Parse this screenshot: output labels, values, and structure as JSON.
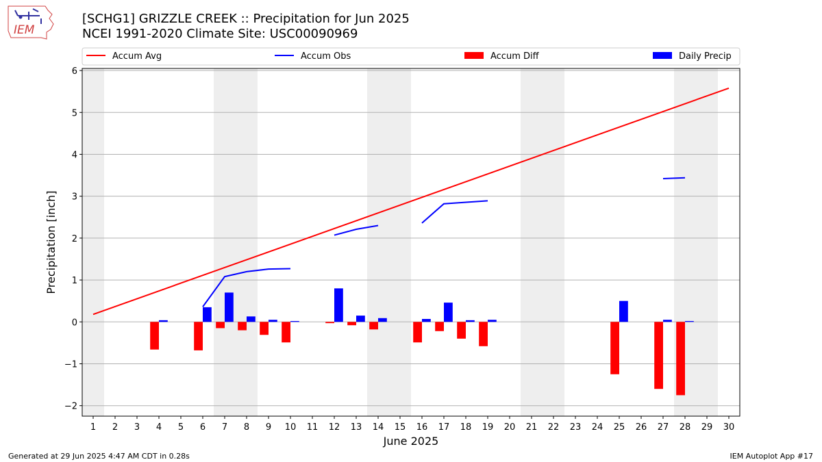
{
  "header": {
    "title_line1": "[SCHG1] GRIZZLE CREEK :: Precipitation for Jun 2025",
    "title_line2": "NCEI 1991-2020 Climate Site: USC00090969",
    "logo_text": "IEM"
  },
  "footer": {
    "generated": "Generated at 29 Jun 2025 4:47 AM CDT in 0.28s",
    "app": "IEM Autoplot App #17"
  },
  "colors": {
    "accum_avg": "#ff0000",
    "accum_obs": "#0000ff",
    "accum_diff": "#ff0000",
    "daily_precip": "#0000ff",
    "weekend_shade": "#eeeeee",
    "grid": "#b0b0b0"
  },
  "chart_data": {
    "type": "bar",
    "xlabel": "June 2025",
    "ylabel": "Precipitation [inch]",
    "xlim": [
      0.5,
      30.5
    ],
    "ylim": [
      -2.25,
      6.05
    ],
    "yticks": [
      -2,
      -1,
      0,
      1,
      2,
      3,
      4,
      5,
      6
    ],
    "ytick_labels": [
      "−2",
      "−1",
      "0",
      "1",
      "2",
      "3",
      "4",
      "5",
      "6"
    ],
    "days": [
      1,
      2,
      3,
      4,
      5,
      6,
      7,
      8,
      9,
      10,
      11,
      12,
      13,
      14,
      15,
      16,
      17,
      18,
      19,
      20,
      21,
      22,
      23,
      24,
      25,
      26,
      27,
      28,
      29,
      30
    ],
    "day_labels": [
      "1",
      "2",
      "3",
      "4",
      "5",
      "6",
      "7",
      "8",
      "9",
      "10",
      "11",
      "12",
      "13",
      "14",
      "15",
      "16",
      "17",
      "18",
      "19",
      "20",
      "21",
      "22",
      "23",
      "24",
      "25",
      "26",
      "27",
      "28",
      "29",
      "30"
    ],
    "weekend_days": [
      1,
      7,
      8,
      14,
      15,
      21,
      22,
      28,
      29
    ],
    "grid": true,
    "legend_position": "top",
    "legend": [
      "Accum Avg",
      "Accum Obs",
      "Accum Diff",
      "Daily Precip"
    ],
    "series": [
      {
        "name": "Accum Avg",
        "kind": "line",
        "x": [
          1,
          30
        ],
        "y": [
          0.18,
          5.58
        ]
      },
      {
        "name": "Accum Obs",
        "kind": "line",
        "segments": [
          {
            "x": [
              6,
              7,
              8,
              9,
              10
            ],
            "y": [
              0.36,
              1.08,
              1.2,
              1.26,
              1.27
            ]
          },
          {
            "x": [
              12,
              13,
              14
            ],
            "y": [
              2.07,
              2.21,
              2.3
            ]
          },
          {
            "x": [
              16,
              17,
              19
            ],
            "y": [
              2.36,
              2.82,
              2.89
            ]
          },
          {
            "x": [
              27,
              28
            ],
            "y": [
              3.42,
              3.44
            ]
          }
        ]
      },
      {
        "name": "Accum Diff",
        "kind": "bar",
        "x": [
          4,
          6,
          7,
          8,
          9,
          10,
          12,
          13,
          14,
          16,
          17,
          18,
          19,
          25,
          27,
          28
        ],
        "y": [
          -0.66,
          -0.68,
          -0.15,
          -0.2,
          -0.31,
          -0.49,
          -0.03,
          -0.08,
          -0.18,
          -0.49,
          -0.22,
          -0.4,
          -0.58,
          -1.25,
          -1.6,
          -1.75
        ]
      },
      {
        "name": "Daily Precip",
        "kind": "bar",
        "x": [
          4,
          6,
          7,
          8,
          9,
          10,
          12,
          13,
          14,
          16,
          17,
          18,
          19,
          25,
          27,
          28
        ],
        "y": [
          0.04,
          0.35,
          0.7,
          0.13,
          0.05,
          0.02,
          0.8,
          0.15,
          0.09,
          0.07,
          0.46,
          0.04,
          0.05,
          0.5,
          0.05,
          0.02
        ]
      }
    ]
  }
}
